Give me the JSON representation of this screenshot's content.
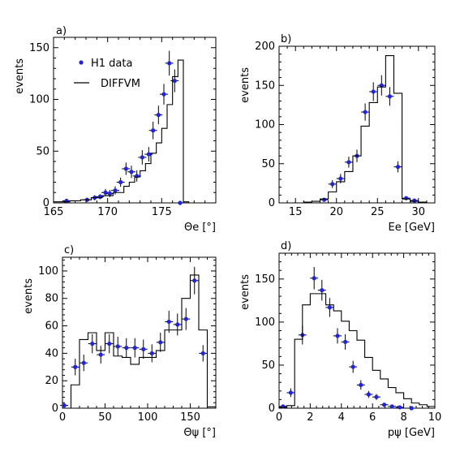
{
  "chart_data": [
    {
      "type": "scatter",
      "panel_label": "a)",
      "xlabel": "Θe [°]",
      "ylabel": "events",
      "xlim": [
        165,
        180
      ],
      "ylim": [
        0,
        160
      ],
      "xticks": [
        165,
        170,
        175
      ],
      "yticks": [
        0,
        50,
        100,
        150
      ],
      "legend": {
        "placement": "top-left",
        "entries": [
          {
            "name": "H1 data",
            "marker": "point"
          },
          {
            "name": "DIFFVM",
            "marker": "line"
          }
        ]
      },
      "series": [
        {
          "name": "H1 data",
          "kind": "points",
          "x": [
            166.2,
            168.1,
            168.8,
            169.3,
            169.8,
            170.2,
            170.7,
            171.2,
            171.7,
            172.2,
            172.7,
            173.2,
            173.8,
            174.2,
            174.7,
            175.2,
            175.7,
            176.2,
            176.7
          ],
          "y": [
            2,
            3,
            5,
            6,
            10,
            9,
            12,
            20,
            33,
            30,
            26,
            44,
            47,
            70,
            85,
            105,
            135,
            118,
            0
          ],
          "err": [
            1.5,
            2,
            2.5,
            2.5,
            3.5,
            3.5,
            4,
            4.5,
            6,
            6,
            5.5,
            7,
            7,
            8.5,
            9,
            10,
            12,
            11,
            0
          ]
        },
        {
          "name": "DIFFVM",
          "kind": "step",
          "edges": [
            165,
            166.5,
            167.5,
            168.5,
            169.5,
            170.5,
            171.5,
            172.0,
            172.5,
            173.0,
            173.5,
            174.0,
            174.5,
            175.0,
            175.5,
            176.0,
            176.5,
            177.0,
            177.5,
            178.0
          ],
          "values": [
            1,
            2,
            3,
            5,
            7,
            10,
            16,
            20,
            25,
            31,
            38,
            48,
            58,
            72,
            95,
            122,
            138,
            1,
            0
          ]
        }
      ]
    },
    {
      "type": "scatter",
      "panel_label": "b)",
      "xlabel": "Ee [GeV]",
      "ylabel": "events",
      "xlim": [
        13,
        32
      ],
      "ylim": [
        0,
        200
      ],
      "xticks": [
        15,
        20,
        25,
        30
      ],
      "yticks": [
        0,
        50,
        100,
        150,
        200
      ],
      "series": [
        {
          "name": "H1 data",
          "kind": "points",
          "x": [
            18.5,
            19.5,
            20.5,
            21.5,
            22.5,
            23.5,
            24.5,
            25.5,
            26.5,
            27.5,
            28.5,
            29.5
          ],
          "y": [
            4,
            24,
            31,
            52,
            60,
            116,
            142,
            150,
            136,
            46,
            6,
            3
          ],
          "err": [
            2,
            5,
            6,
            7,
            8,
            11,
            12,
            13,
            12,
            7,
            2.5,
            2
          ]
        },
        {
          "name": "DIFFVM",
          "kind": "step",
          "edges": [
            13,
            16,
            17,
            18,
            19,
            20,
            21,
            22,
            23,
            24,
            25,
            26,
            27,
            28,
            29,
            30,
            31,
            32
          ],
          "values": [
            0,
            1,
            2,
            5,
            14,
            27,
            40,
            60,
            98,
            128,
            148,
            188,
            140,
            5,
            2,
            1,
            0
          ]
        }
      ]
    },
    {
      "type": "scatter",
      "panel_label": "c)",
      "xlabel": "Θψ [°]",
      "ylabel": "events",
      "xlim": [
        0,
        180
      ],
      "ylim": [
        0,
        110
      ],
      "xticks": [
        0,
        50,
        100,
        150
      ],
      "yticks": [
        0,
        20,
        40,
        60,
        80,
        100
      ],
      "series": [
        {
          "name": "H1 data",
          "kind": "points",
          "x": [
            2,
            15,
            25,
            35,
            45,
            55,
            65,
            75,
            85,
            95,
            105,
            115,
            125,
            135,
            145,
            155,
            165
          ],
          "y": [
            2,
            30,
            33,
            47,
            39,
            47,
            45,
            44,
            44,
            43,
            40,
            48,
            63,
            61,
            65,
            93,
            40
          ],
          "err": [
            1.5,
            6,
            6,
            7,
            6.5,
            7,
            7,
            7,
            7,
            7,
            6.5,
            7,
            8,
            8,
            8,
            10,
            6
          ]
        },
        {
          "name": "DIFFVM",
          "kind": "step",
          "edges": [
            0,
            10,
            20,
            30,
            40,
            50,
            60,
            70,
            80,
            90,
            100,
            110,
            120,
            130,
            140,
            150,
            160,
            170,
            180
          ],
          "values": [
            0,
            17,
            50,
            55,
            42,
            55,
            38,
            37,
            32,
            37,
            37,
            42,
            57,
            57,
            80,
            97,
            57,
            1
          ]
        }
      ]
    },
    {
      "type": "scatter",
      "panel_label": "d)",
      "xlabel": "pψ [GeV]",
      "ylabel": "events",
      "xlim": [
        0,
        10
      ],
      "ylim": [
        0,
        180
      ],
      "xticks": [
        0,
        2,
        4,
        6,
        8,
        10
      ],
      "yticks": [
        0,
        50,
        100,
        150
      ],
      "series": [
        {
          "name": "H1 data",
          "kind": "points",
          "x": [
            0.25,
            0.75,
            1.5,
            2.25,
            2.75,
            3.25,
            3.75,
            4.25,
            4.75,
            5.25,
            5.75,
            6.25,
            6.75,
            7.25,
            7.75,
            8.5
          ],
          "y": [
            2,
            18,
            85,
            151,
            137,
            117,
            84,
            77,
            48,
            27,
            16,
            13,
            4,
            2,
            1,
            0
          ],
          "err": [
            1.5,
            5,
            11,
            13,
            12,
            11,
            9,
            9,
            7,
            5.5,
            4,
            3.5,
            2,
            1.5,
            1,
            0
          ]
        },
        {
          "name": "DIFFVM",
          "kind": "step",
          "edges": [
            0,
            0.5,
            1.0,
            1.5,
            2.0,
            2.5,
            3.0,
            3.5,
            4.0,
            4.5,
            5.0,
            5.5,
            6.0,
            6.5,
            7.0,
            7.5,
            8.0,
            8.5,
            9.0,
            9.5,
            10.0
          ],
          "values": [
            1,
            3,
            80,
            120,
            133,
            133,
            120,
            113,
            101,
            90,
            79,
            59,
            44,
            34,
            24,
            18,
            11,
            6,
            4,
            2
          ]
        }
      ]
    }
  ],
  "colors": {
    "data_points": "#1f22ee",
    "frame": "#000000",
    "histogram": "#000000"
  }
}
